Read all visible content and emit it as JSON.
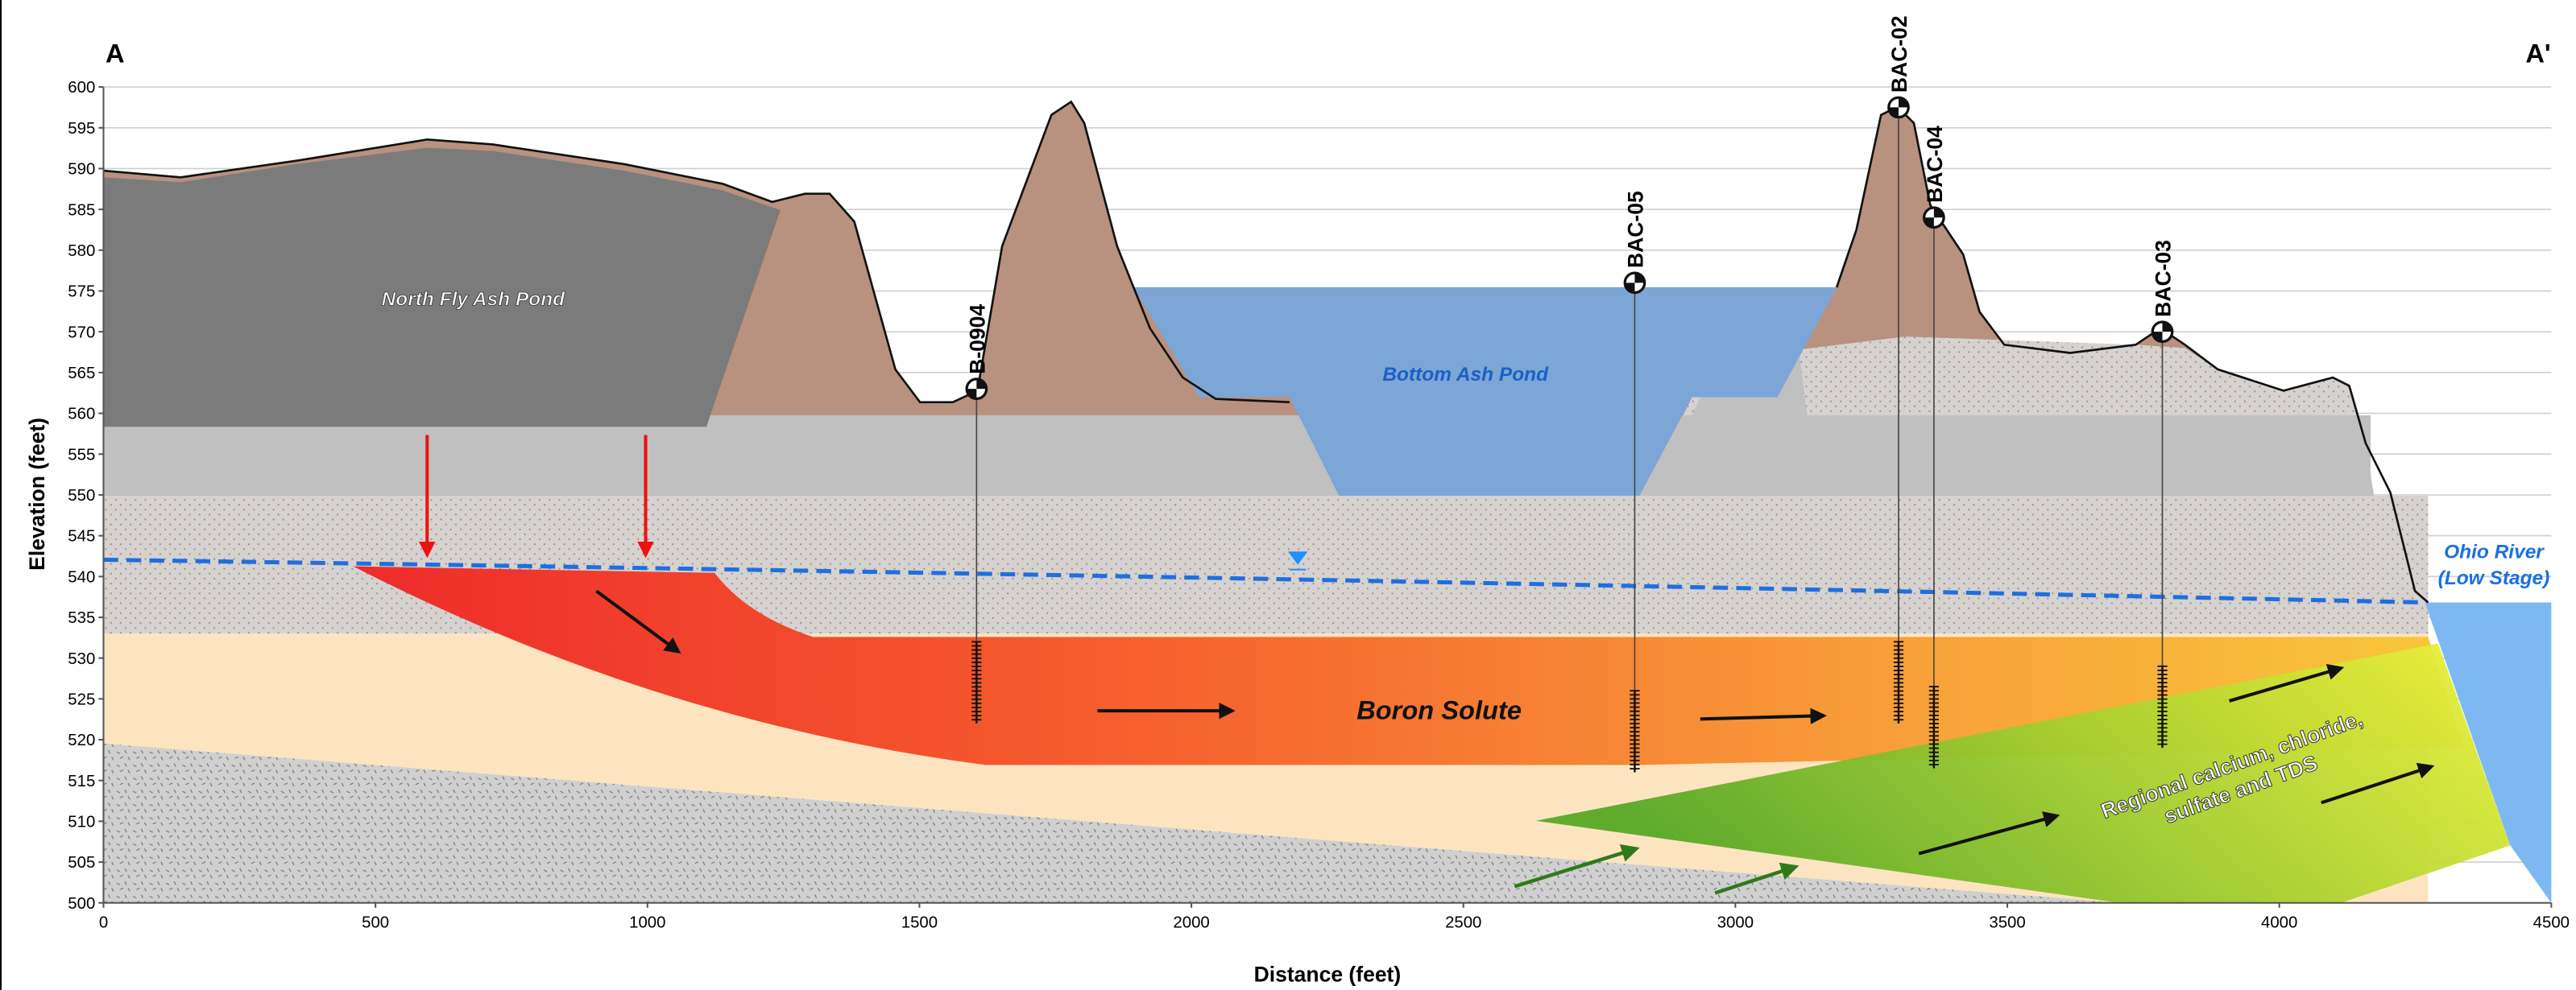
{
  "chart_data": {
    "type": "cross-section",
    "section_start": "A",
    "section_end": "A'",
    "xlabel": "Distance (feet)",
    "ylabel": "Elevation (feet)",
    "xlim": [
      0,
      4500
    ],
    "xticks": [
      0,
      500,
      1000,
      1500,
      2000,
      2500,
      3000,
      3500,
      4000,
      4500
    ],
    "ylim": [
      500,
      600
    ],
    "yticks": [
      500,
      505,
      510,
      515,
      520,
      525,
      530,
      535,
      540,
      545,
      550,
      555,
      560,
      565,
      570,
      575,
      580,
      585,
      590,
      595,
      600
    ],
    "grid": true,
    "annotations": {
      "ash_pond": "North Fly Ash Pond",
      "bottom_pond": "Bottom Ash Pond",
      "plume": "Boron Solute",
      "regional": [
        "Regional calcium, chloride,",
        "sulfate and TDS"
      ],
      "river": [
        "Ohio River",
        "(Low Stage)"
      ]
    },
    "wells": [
      {
        "name": "B-0904",
        "x": 1605,
        "top": 563,
        "screen_top": 532,
        "bottom": 522
      },
      {
        "name": "BAC-05",
        "x": 2815,
        "top": 576,
        "screen_top": 526,
        "bottom": 516
      },
      {
        "name": "BAC-02",
        "x": 3300,
        "top": 597.5,
        "screen_top": 532,
        "bottom": 522
      },
      {
        "name": "BAC-04",
        "x": 3365,
        "top": 584,
        "screen_top": 526.5,
        "bottom": 516.5
      },
      {
        "name": "BAC-03",
        "x": 3785,
        "top": 570,
        "screen_top": 529,
        "bottom": 519
      }
    ]
  }
}
